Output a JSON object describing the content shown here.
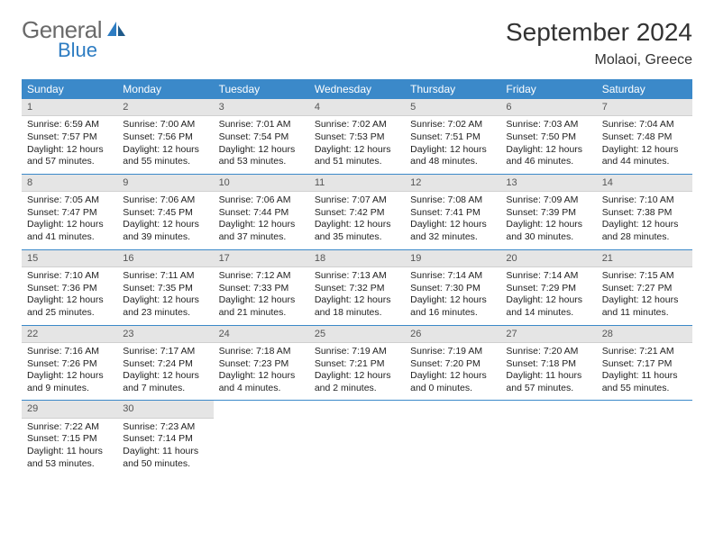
{
  "brand": {
    "name_gray": "General",
    "name_blue": "Blue",
    "gray_color": "#6a6a6a",
    "blue_color": "#2d7cc2"
  },
  "title": "September 2024",
  "location": "Molaoi, Greece",
  "header_bg": "#3b89c9",
  "header_fg": "#ffffff",
  "daynum_bg": "#e5e5e5",
  "border_color": "#3b89c9",
  "day_names": [
    "Sunday",
    "Monday",
    "Tuesday",
    "Wednesday",
    "Thursday",
    "Friday",
    "Saturday"
  ],
  "weeks": [
    [
      {
        "num": "1",
        "sunrise": "Sunrise: 6:59 AM",
        "sunset": "Sunset: 7:57 PM",
        "day1": "Daylight: 12 hours",
        "day2": "and 57 minutes."
      },
      {
        "num": "2",
        "sunrise": "Sunrise: 7:00 AM",
        "sunset": "Sunset: 7:56 PM",
        "day1": "Daylight: 12 hours",
        "day2": "and 55 minutes."
      },
      {
        "num": "3",
        "sunrise": "Sunrise: 7:01 AM",
        "sunset": "Sunset: 7:54 PM",
        "day1": "Daylight: 12 hours",
        "day2": "and 53 minutes."
      },
      {
        "num": "4",
        "sunrise": "Sunrise: 7:02 AM",
        "sunset": "Sunset: 7:53 PM",
        "day1": "Daylight: 12 hours",
        "day2": "and 51 minutes."
      },
      {
        "num": "5",
        "sunrise": "Sunrise: 7:02 AM",
        "sunset": "Sunset: 7:51 PM",
        "day1": "Daylight: 12 hours",
        "day2": "and 48 minutes."
      },
      {
        "num": "6",
        "sunrise": "Sunrise: 7:03 AM",
        "sunset": "Sunset: 7:50 PM",
        "day1": "Daylight: 12 hours",
        "day2": "and 46 minutes."
      },
      {
        "num": "7",
        "sunrise": "Sunrise: 7:04 AM",
        "sunset": "Sunset: 7:48 PM",
        "day1": "Daylight: 12 hours",
        "day2": "and 44 minutes."
      }
    ],
    [
      {
        "num": "8",
        "sunrise": "Sunrise: 7:05 AM",
        "sunset": "Sunset: 7:47 PM",
        "day1": "Daylight: 12 hours",
        "day2": "and 41 minutes."
      },
      {
        "num": "9",
        "sunrise": "Sunrise: 7:06 AM",
        "sunset": "Sunset: 7:45 PM",
        "day1": "Daylight: 12 hours",
        "day2": "and 39 minutes."
      },
      {
        "num": "10",
        "sunrise": "Sunrise: 7:06 AM",
        "sunset": "Sunset: 7:44 PM",
        "day1": "Daylight: 12 hours",
        "day2": "and 37 minutes."
      },
      {
        "num": "11",
        "sunrise": "Sunrise: 7:07 AM",
        "sunset": "Sunset: 7:42 PM",
        "day1": "Daylight: 12 hours",
        "day2": "and 35 minutes."
      },
      {
        "num": "12",
        "sunrise": "Sunrise: 7:08 AM",
        "sunset": "Sunset: 7:41 PM",
        "day1": "Daylight: 12 hours",
        "day2": "and 32 minutes."
      },
      {
        "num": "13",
        "sunrise": "Sunrise: 7:09 AM",
        "sunset": "Sunset: 7:39 PM",
        "day1": "Daylight: 12 hours",
        "day2": "and 30 minutes."
      },
      {
        "num": "14",
        "sunrise": "Sunrise: 7:10 AM",
        "sunset": "Sunset: 7:38 PM",
        "day1": "Daylight: 12 hours",
        "day2": "and 28 minutes."
      }
    ],
    [
      {
        "num": "15",
        "sunrise": "Sunrise: 7:10 AM",
        "sunset": "Sunset: 7:36 PM",
        "day1": "Daylight: 12 hours",
        "day2": "and 25 minutes."
      },
      {
        "num": "16",
        "sunrise": "Sunrise: 7:11 AM",
        "sunset": "Sunset: 7:35 PM",
        "day1": "Daylight: 12 hours",
        "day2": "and 23 minutes."
      },
      {
        "num": "17",
        "sunrise": "Sunrise: 7:12 AM",
        "sunset": "Sunset: 7:33 PM",
        "day1": "Daylight: 12 hours",
        "day2": "and 21 minutes."
      },
      {
        "num": "18",
        "sunrise": "Sunrise: 7:13 AM",
        "sunset": "Sunset: 7:32 PM",
        "day1": "Daylight: 12 hours",
        "day2": "and 18 minutes."
      },
      {
        "num": "19",
        "sunrise": "Sunrise: 7:14 AM",
        "sunset": "Sunset: 7:30 PM",
        "day1": "Daylight: 12 hours",
        "day2": "and 16 minutes."
      },
      {
        "num": "20",
        "sunrise": "Sunrise: 7:14 AM",
        "sunset": "Sunset: 7:29 PM",
        "day1": "Daylight: 12 hours",
        "day2": "and 14 minutes."
      },
      {
        "num": "21",
        "sunrise": "Sunrise: 7:15 AM",
        "sunset": "Sunset: 7:27 PM",
        "day1": "Daylight: 12 hours",
        "day2": "and 11 minutes."
      }
    ],
    [
      {
        "num": "22",
        "sunrise": "Sunrise: 7:16 AM",
        "sunset": "Sunset: 7:26 PM",
        "day1": "Daylight: 12 hours",
        "day2": "and 9 minutes."
      },
      {
        "num": "23",
        "sunrise": "Sunrise: 7:17 AM",
        "sunset": "Sunset: 7:24 PM",
        "day1": "Daylight: 12 hours",
        "day2": "and 7 minutes."
      },
      {
        "num": "24",
        "sunrise": "Sunrise: 7:18 AM",
        "sunset": "Sunset: 7:23 PM",
        "day1": "Daylight: 12 hours",
        "day2": "and 4 minutes."
      },
      {
        "num": "25",
        "sunrise": "Sunrise: 7:19 AM",
        "sunset": "Sunset: 7:21 PM",
        "day1": "Daylight: 12 hours",
        "day2": "and 2 minutes."
      },
      {
        "num": "26",
        "sunrise": "Sunrise: 7:19 AM",
        "sunset": "Sunset: 7:20 PM",
        "day1": "Daylight: 12 hours",
        "day2": "and 0 minutes."
      },
      {
        "num": "27",
        "sunrise": "Sunrise: 7:20 AM",
        "sunset": "Sunset: 7:18 PM",
        "day1": "Daylight: 11 hours",
        "day2": "and 57 minutes."
      },
      {
        "num": "28",
        "sunrise": "Sunrise: 7:21 AM",
        "sunset": "Sunset: 7:17 PM",
        "day1": "Daylight: 11 hours",
        "day2": "and 55 minutes."
      }
    ],
    [
      {
        "num": "29",
        "sunrise": "Sunrise: 7:22 AM",
        "sunset": "Sunset: 7:15 PM",
        "day1": "Daylight: 11 hours",
        "day2": "and 53 minutes."
      },
      {
        "num": "30",
        "sunrise": "Sunrise: 7:23 AM",
        "sunset": "Sunset: 7:14 PM",
        "day1": "Daylight: 11 hours",
        "day2": "and 50 minutes."
      },
      null,
      null,
      null,
      null,
      null
    ]
  ]
}
